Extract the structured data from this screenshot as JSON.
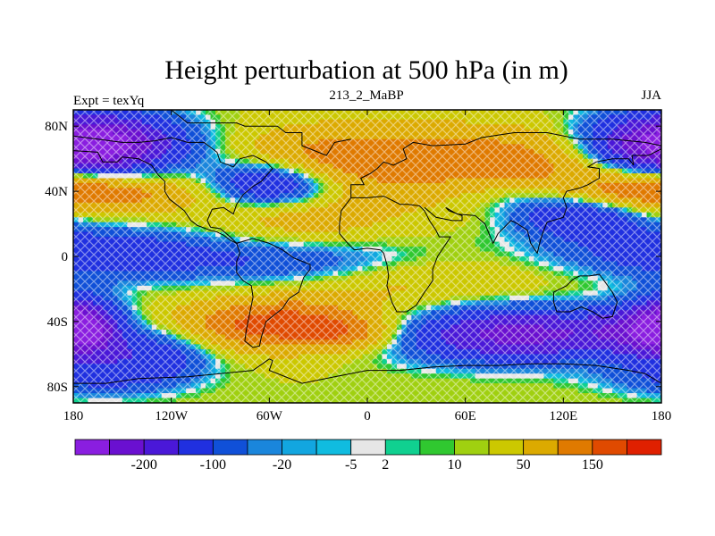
{
  "chart_data": {
    "type": "heatmap",
    "title": "Height perturbation at 500 hPa (in m)",
    "subtitle_left": "Expt = texYq",
    "subtitle_center": "213_2_MaBP",
    "subtitle_right": "JJA",
    "x_ticks": [
      "180",
      "120W",
      "60W",
      "0",
      "60E",
      "120E",
      "180"
    ],
    "x_tick_values": [
      -180,
      -120,
      -60,
      0,
      60,
      120,
      180
    ],
    "y_ticks": [
      "80N",
      "40N",
      "0",
      "40S",
      "80S"
    ],
    "y_tick_values": [
      80,
      40,
      0,
      -40,
      -80
    ],
    "xlim": [
      -180,
      180
    ],
    "ylim": [
      -90,
      90
    ],
    "colorbar": {
      "colors": [
        "#8a1ee0",
        "#6a10d0",
        "#4a18d8",
        "#2030e0",
        "#1050d8",
        "#1a86dc",
        "#12a6e0",
        "#10bce0",
        "#e6e6e6",
        "#10d090",
        "#30c830",
        "#a0d010",
        "#ccc800",
        "#dcaa00",
        "#e07a00",
        "#e04a00",
        "#e02000"
      ],
      "labels": [
        "-200",
        "-100",
        "-20",
        "-5",
        "2",
        "10",
        "50",
        "150"
      ],
      "label_after_box": [
        1,
        3,
        5,
        7,
        8,
        10,
        12,
        14
      ]
    }
  }
}
